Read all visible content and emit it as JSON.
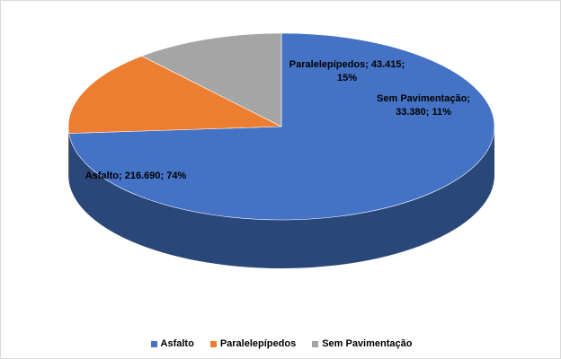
{
  "chart_data": {
    "type": "pie",
    "style": "3d",
    "categories": [
      "Asfalto",
      "Paralelepípedos",
      "Sem Pavimentação"
    ],
    "values": [
      216690,
      43415,
      33380
    ],
    "percents": [
      74,
      15,
      11
    ],
    "value_labels": [
      "216.690",
      "43.415",
      "33.380"
    ],
    "data_labels": [
      [
        "Asfalto; 216.690; 74%"
      ],
      [
        "Paralelepípedos; 43.415;",
        "15%"
      ],
      [
        "Sem Pavimentação;",
        "33.380; 11%"
      ]
    ],
    "colors": [
      "#4472c4",
      "#ed7d31",
      "#a5a5a5"
    ],
    "legend_position": "bottom"
  }
}
